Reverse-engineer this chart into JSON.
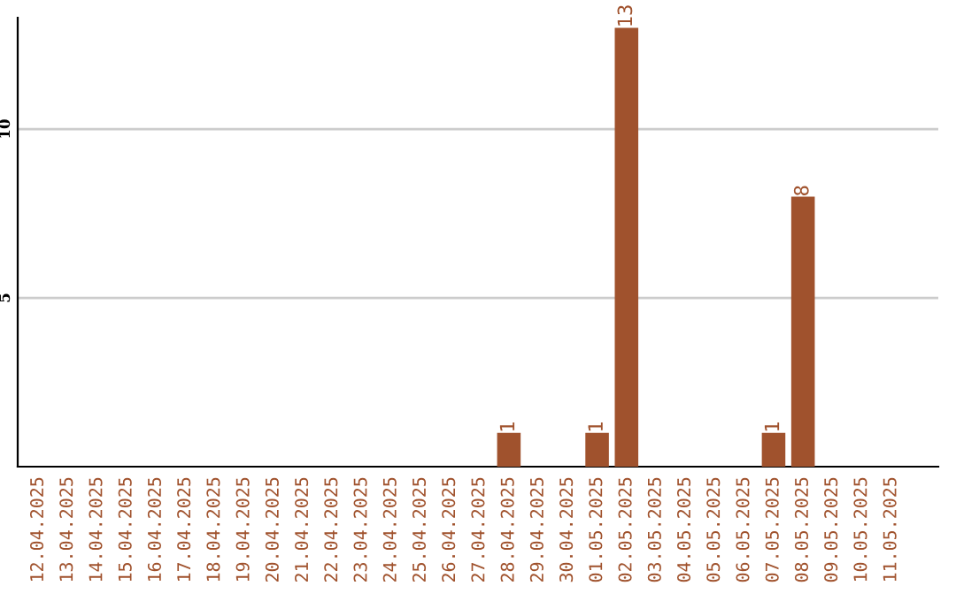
{
  "chart_data": {
    "type": "bar",
    "categories": [
      "12.04.2025",
      "13.04.2025",
      "14.04.2025",
      "15.04.2025",
      "16.04.2025",
      "17.04.2025",
      "18.04.2025",
      "19.04.2025",
      "20.04.2025",
      "21.04.2025",
      "22.04.2025",
      "23.04.2025",
      "24.04.2025",
      "25.04.2025",
      "26.04.2025",
      "27.04.2025",
      "28.04.2025",
      "29.04.2025",
      "30.04.2025",
      "01.05.2025",
      "02.05.2025",
      "03.05.2025",
      "04.05.2025",
      "05.05.2025",
      "06.05.2025",
      "07.05.2025",
      "08.05.2025",
      "09.05.2025",
      "10.05.2025",
      "11.05.2025"
    ],
    "values": [
      0,
      0,
      0,
      0,
      0,
      0,
      0,
      0,
      0,
      0,
      0,
      0,
      0,
      0,
      0,
      0,
      1,
      0,
      0,
      1,
      13,
      0,
      0,
      0,
      0,
      1,
      8,
      0,
      0,
      0
    ],
    "value_labels": [
      null,
      null,
      null,
      null,
      null,
      null,
      null,
      null,
      null,
      null,
      null,
      null,
      null,
      null,
      null,
      null,
      "1",
      null,
      null,
      "1",
      "13",
      null,
      null,
      null,
      null,
      "1",
      "8",
      null,
      null,
      null
    ],
    "color": "#a0522d",
    "ylim": [
      0,
      13.3
    ],
    "yticks": [
      5,
      10
    ],
    "grid": "y"
  }
}
